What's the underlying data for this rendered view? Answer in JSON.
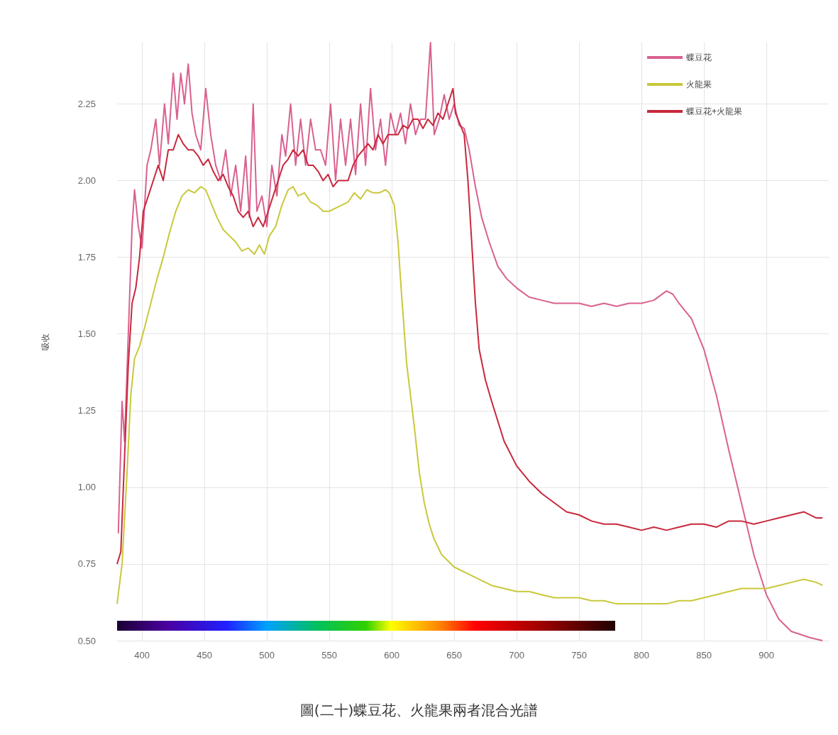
{
  "chart_data": {
    "type": "line",
    "title": "圖(二十)蝶豆花、火龍果兩者混合光譜",
    "ylabel": "吸收",
    "xlim": [
      380,
      950
    ],
    "xticks": [
      400,
      450,
      500,
      550,
      600,
      650,
      700,
      750,
      800,
      850,
      900
    ],
    "ylim": [
      0.5,
      2.45
    ],
    "yticks": [
      {
        "value": 0.5,
        "label": "0.50"
      },
      {
        "value": 0.75,
        "label": "0.75"
      },
      {
        "value": 1,
        "label": "1.00"
      },
      {
        "value": 1.25,
        "label": "1.25"
      },
      {
        "value": 1.5,
        "label": "1.50"
      },
      {
        "value": 1.75,
        "label": "1.75"
      },
      {
        "value": 2,
        "label": "2.00"
      },
      {
        "value": 2.25,
        "label": "2.25"
      }
    ],
    "grid": true,
    "legend": "top right",
    "marker": "none",
    "line_style": "solid",
    "series": [
      {
        "name": "蝶豆花",
        "color": "#d9618f",
        "x": [
          381,
          384,
          386,
          389,
          392,
          394,
          397,
          400,
          404,
          407,
          411,
          414,
          418,
          421,
          425,
          428,
          431,
          434,
          437,
          440,
          443,
          447,
          451,
          455,
          459,
          463,
          467,
          471,
          475,
          479,
          483,
          486,
          489,
          492,
          496,
          500,
          504,
          508,
          512,
          515,
          519,
          523,
          527,
          531,
          535,
          539,
          543,
          547,
          551,
          555,
          559,
          563,
          567,
          571,
          575,
          579,
          583,
          587,
          591,
          595,
          599,
          603,
          607,
          611,
          615,
          619,
          623,
          627,
          631,
          634,
          638,
          642,
          646,
          650,
          654,
          658,
          662,
          667,
          672,
          678,
          685,
          692,
          700,
          710,
          720,
          730,
          740,
          750,
          760,
          770,
          780,
          790,
          800,
          810,
          820,
          825,
          830,
          840,
          850,
          860,
          870,
          880,
          890,
          900,
          910,
          920,
          935,
          945
        ],
        "values": [
          0.85,
          1.28,
          1.15,
          1.5,
          1.85,
          1.97,
          1.85,
          1.78,
          2.05,
          2.1,
          2.2,
          2.05,
          2.25,
          2.12,
          2.35,
          2.2,
          2.35,
          2.25,
          2.38,
          2.22,
          2.15,
          2.1,
          2.3,
          2.15,
          2.05,
          2.0,
          2.1,
          1.95,
          2.05,
          1.9,
          2.08,
          1.88,
          2.25,
          1.9,
          1.95,
          1.85,
          2.05,
          1.95,
          2.15,
          2.08,
          2.25,
          2.05,
          2.2,
          2.05,
          2.2,
          2.1,
          2.1,
          2.05,
          2.25,
          2.0,
          2.2,
          2.05,
          2.2,
          2.02,
          2.25,
          2.05,
          2.3,
          2.1,
          2.2,
          2.05,
          2.22,
          2.15,
          2.22,
          2.12,
          2.25,
          2.15,
          2.2,
          2.2,
          2.45,
          2.15,
          2.2,
          2.28,
          2.2,
          2.25,
          2.18,
          2.17,
          2.1,
          1.98,
          1.88,
          1.8,
          1.72,
          1.68,
          1.65,
          1.62,
          1.61,
          1.6,
          1.6,
          1.6,
          1.59,
          1.6,
          1.59,
          1.6,
          1.6,
          1.61,
          1.64,
          1.63,
          1.6,
          1.55,
          1.45,
          1.3,
          1.12,
          0.95,
          0.78,
          0.65,
          0.57,
          0.53,
          0.51,
          0.5
        ]
      },
      {
        "name": "火龍果",
        "color": "#c9c83c",
        "x": [
          380,
          384,
          388,
          391,
          394,
          398,
          402,
          407,
          412,
          417,
          422,
          427,
          432,
          437,
          442,
          447,
          451,
          455,
          460,
          465,
          470,
          475,
          480,
          485,
          490,
          494,
          498,
          502,
          507,
          512,
          517,
          521,
          525,
          530,
          535,
          540,
          545,
          550,
          555,
          560,
          565,
          570,
          575,
          580,
          585,
          590,
          595,
          598,
          602,
          605,
          608,
          612,
          618,
          622,
          626,
          630,
          634,
          640,
          650,
          660,
          670,
          680,
          690,
          700,
          710,
          720,
          730,
          740,
          750,
          760,
          770,
          780,
          790,
          800,
          810,
          820,
          830,
          840,
          850,
          860,
          870,
          880,
          890,
          900,
          910,
          920,
          930,
          940,
          945
        ],
        "values": [
          0.62,
          0.75,
          1.05,
          1.3,
          1.42,
          1.46,
          1.52,
          1.6,
          1.68,
          1.75,
          1.83,
          1.9,
          1.95,
          1.97,
          1.96,
          1.98,
          1.97,
          1.93,
          1.88,
          1.84,
          1.82,
          1.8,
          1.77,
          1.78,
          1.76,
          1.79,
          1.76,
          1.82,
          1.85,
          1.92,
          1.97,
          1.98,
          1.95,
          1.96,
          1.93,
          1.92,
          1.9,
          1.9,
          1.91,
          1.92,
          1.93,
          1.96,
          1.94,
          1.97,
          1.96,
          1.96,
          1.97,
          1.96,
          1.92,
          1.8,
          1.62,
          1.4,
          1.2,
          1.05,
          0.95,
          0.88,
          0.83,
          0.78,
          0.74,
          0.72,
          0.7,
          0.68,
          0.67,
          0.66,
          0.66,
          0.65,
          0.64,
          0.64,
          0.64,
          0.63,
          0.63,
          0.62,
          0.62,
          0.62,
          0.62,
          0.62,
          0.63,
          0.63,
          0.64,
          0.65,
          0.66,
          0.67,
          0.67,
          0.67,
          0.68,
          0.69,
          0.7,
          0.69,
          0.68
        ]
      },
      {
        "name": "蝶豆花+火龍果",
        "color": "#c8283c",
        "x": [
          380,
          383,
          386,
          389,
          392,
          395,
          398,
          401,
          405,
          409,
          413,
          417,
          421,
          425,
          429,
          433,
          437,
          441,
          445,
          449,
          453,
          457,
          461,
          465,
          469,
          473,
          477,
          481,
          485,
          489,
          493,
          497,
          501,
          505,
          509,
          513,
          517,
          521,
          525,
          529,
          533,
          537,
          541,
          545,
          549,
          553,
          557,
          561,
          565,
          569,
          573,
          577,
          581,
          585,
          589,
          593,
          597,
          601,
          605,
          609,
          613,
          617,
          621,
          625,
          629,
          633,
          637,
          641,
          645,
          649,
          651,
          655,
          658,
          661,
          664,
          667,
          670,
          675,
          680,
          690,
          700,
          710,
          720,
          730,
          740,
          750,
          760,
          770,
          780,
          790,
          800,
          810,
          820,
          830,
          840,
          850,
          860,
          870,
          880,
          890,
          900,
          910,
          920,
          930,
          940,
          945
        ],
        "values": [
          0.75,
          0.79,
          1.1,
          1.4,
          1.6,
          1.65,
          1.75,
          1.9,
          1.95,
          2.0,
          2.05,
          2.0,
          2.1,
          2.1,
          2.15,
          2.12,
          2.1,
          2.1,
          2.08,
          2.05,
          2.07,
          2.03,
          2.0,
          2.02,
          1.98,
          1.95,
          1.9,
          1.88,
          1.9,
          1.85,
          1.88,
          1.85,
          1.9,
          1.95,
          2.0,
          2.05,
          2.07,
          2.1,
          2.08,
          2.1,
          2.05,
          2.05,
          2.03,
          2.0,
          2.02,
          1.98,
          2.0,
          2.0,
          2.0,
          2.05,
          2.08,
          2.1,
          2.12,
          2.1,
          2.15,
          2.12,
          2.15,
          2.15,
          2.15,
          2.18,
          2.17,
          2.2,
          2.2,
          2.17,
          2.2,
          2.18,
          2.22,
          2.2,
          2.25,
          2.3,
          2.22,
          2.18,
          2.15,
          2.0,
          1.8,
          1.6,
          1.45,
          1.35,
          1.28,
          1.15,
          1.07,
          1.02,
          0.98,
          0.95,
          0.92,
          0.91,
          0.89,
          0.88,
          0.88,
          0.87,
          0.86,
          0.87,
          0.86,
          0.87,
          0.88,
          0.88,
          0.87,
          0.89,
          0.89,
          0.88,
          0.89,
          0.9,
          0.91,
          0.92,
          0.9,
          0.9
        ]
      }
    ]
  }
}
